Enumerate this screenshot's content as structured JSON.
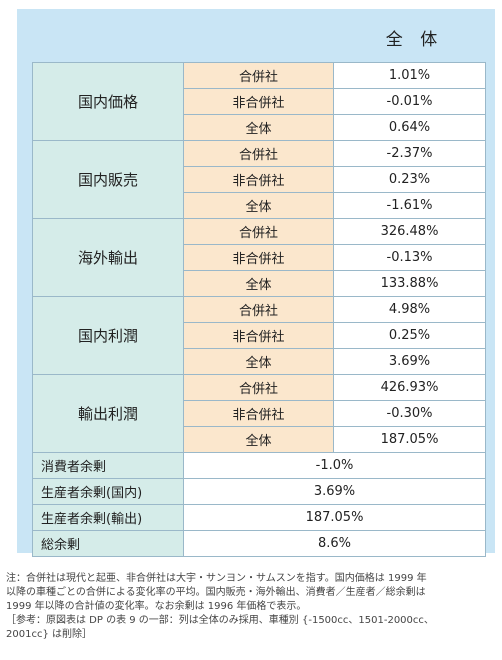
{
  "header": {
    "label": "全 体"
  },
  "groups": [
    {
      "name": "国内価格",
      "rows": [
        {
          "label": "合併社",
          "value": "1.01%"
        },
        {
          "label": "非合併社",
          "value": "-0.01%"
        },
        {
          "label": "全体",
          "value": "0.64%"
        }
      ]
    },
    {
      "name": "国内販売",
      "rows": [
        {
          "label": "合併社",
          "value": "-2.37%"
        },
        {
          "label": "非合併社",
          "value": "0.23%"
        },
        {
          "label": "全体",
          "value": "-1.61%"
        }
      ]
    },
    {
      "name": "海外輸出",
      "rows": [
        {
          "label": "合併社",
          "value": "326.48%"
        },
        {
          "label": "非合併社",
          "value": "-0.13%"
        },
        {
          "label": "全体",
          "value": "133.88%"
        }
      ]
    },
    {
      "name": "国内利潤",
      "rows": [
        {
          "label": "合併社",
          "value": "4.98%"
        },
        {
          "label": "非合併社",
          "value": "0.25%"
        },
        {
          "label": "全体",
          "value": "3.69%"
        }
      ]
    },
    {
      "name": "輸出利潤",
      "rows": [
        {
          "label": "合併社",
          "value": "426.93%"
        },
        {
          "label": "非合併社",
          "value": "-0.30%"
        },
        {
          "label": "全体",
          "value": "187.05%"
        }
      ]
    }
  ],
  "surplus": [
    {
      "label": "消費者余剰",
      "value": "-1.0%"
    },
    {
      "label": "生産者余剰(国内)",
      "value": "3.69%"
    },
    {
      "label": "生産者余剰(輸出)",
      "value": "187.05%"
    },
    {
      "label": "総余剰",
      "value": "8.6%"
    }
  ],
  "footnote": {
    "line1": "注：合併社は現代と起亜、非合併社は大宇・サンヨン・サムスンを指す。国内価格は 1999 年",
    "line2": "以降の車種ごとの合併による変化率の平均。国内販売・海外輸出、消費者／生産者／総余剰は",
    "line3": "1999 年以降の合計値の変化率。なお余剰は 1996 年価格で表示。",
    "line4": "［参考：原図表は DP の表 9 の一部：列は全体のみ採用、車種別 {-1500cc、1501-2000cc、",
    "line5": "2001cc} は削除］"
  },
  "colors": {
    "frame": "#c9e5f5",
    "category": "#d5ece9",
    "sub": "#fbe7cd",
    "value": "#ffffff"
  }
}
